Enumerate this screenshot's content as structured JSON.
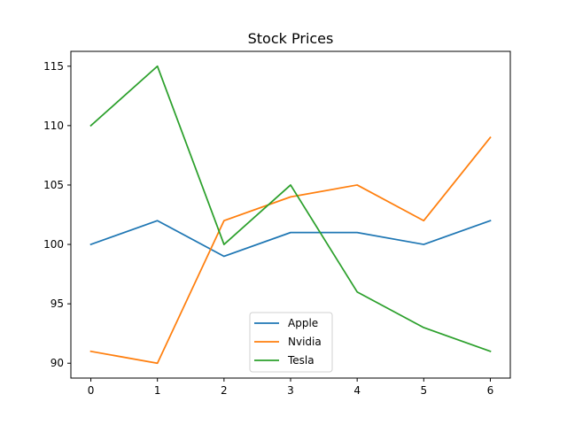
{
  "chart_data": {
    "type": "line",
    "title": "Stock Prices",
    "xlabel": "",
    "ylabel": "",
    "x": [
      0,
      1,
      2,
      3,
      4,
      5,
      6
    ],
    "x_ticks": [
      "0",
      "1",
      "2",
      "3",
      "4",
      "5",
      "6"
    ],
    "y_ticks": [
      "90",
      "95",
      "100",
      "105",
      "110",
      "115"
    ],
    "xlim": [
      -0.3,
      6.3
    ],
    "ylim": [
      88.75,
      116.25
    ],
    "grid": false,
    "legend_position": "lower center",
    "series": [
      {
        "name": "Apple",
        "color": "#1f77b4",
        "values": [
          100,
          102,
          99,
          101,
          101,
          100,
          102
        ]
      },
      {
        "name": "Nvidia",
        "color": "#ff7f0e",
        "values": [
          91,
          90,
          102,
          104,
          105,
          102,
          109
        ]
      },
      {
        "name": "Tesla",
        "color": "#2ca02c",
        "values": [
          110,
          115,
          100,
          105,
          96,
          93,
          91
        ]
      }
    ]
  }
}
